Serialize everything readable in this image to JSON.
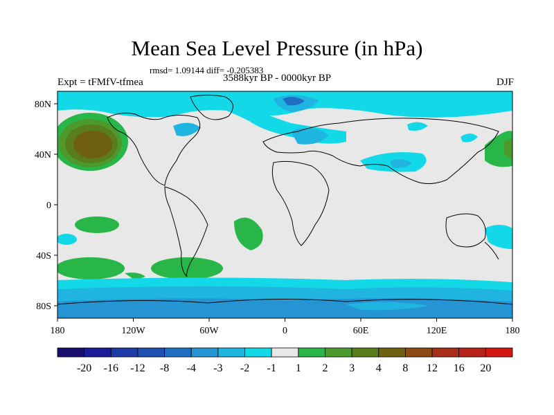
{
  "title": "Mean Sea Level Pressure (in hPa)",
  "stats": {
    "label": "rmsd= 1.09144 diff= -0.205383"
  },
  "experiment": {
    "label": "Expt = tFMfV-tfmea"
  },
  "period": {
    "label": "3588kyr BP - 0000kyr BP"
  },
  "season": {
    "label": "DJF"
  },
  "axes": {
    "lat_labels": [
      "80N",
      "40N",
      "0",
      "40S",
      "80S"
    ],
    "lon_labels": [
      "180",
      "120W",
      "60W",
      "0",
      "60E",
      "120E",
      "180"
    ]
  },
  "colorbar": {
    "labels": [
      "-20",
      "-16",
      "-12",
      "-8",
      "-4",
      "-3",
      "-2",
      "-1",
      "1",
      "2",
      "3",
      "4",
      "8",
      "12",
      "16",
      "20"
    ],
    "colors": [
      "#1a0f6e",
      "#1c1c96",
      "#1e3aa8",
      "#1e50b4",
      "#1e6ec3",
      "#2494d3",
      "#20b4e0",
      "#12d8e8",
      "#e8e8e8",
      "#28b648",
      "#4c9a2e",
      "#5a7d1c",
      "#6e6010",
      "#8e4a14",
      "#a8301a",
      "#b8201a",
      "#d01810"
    ]
  }
}
